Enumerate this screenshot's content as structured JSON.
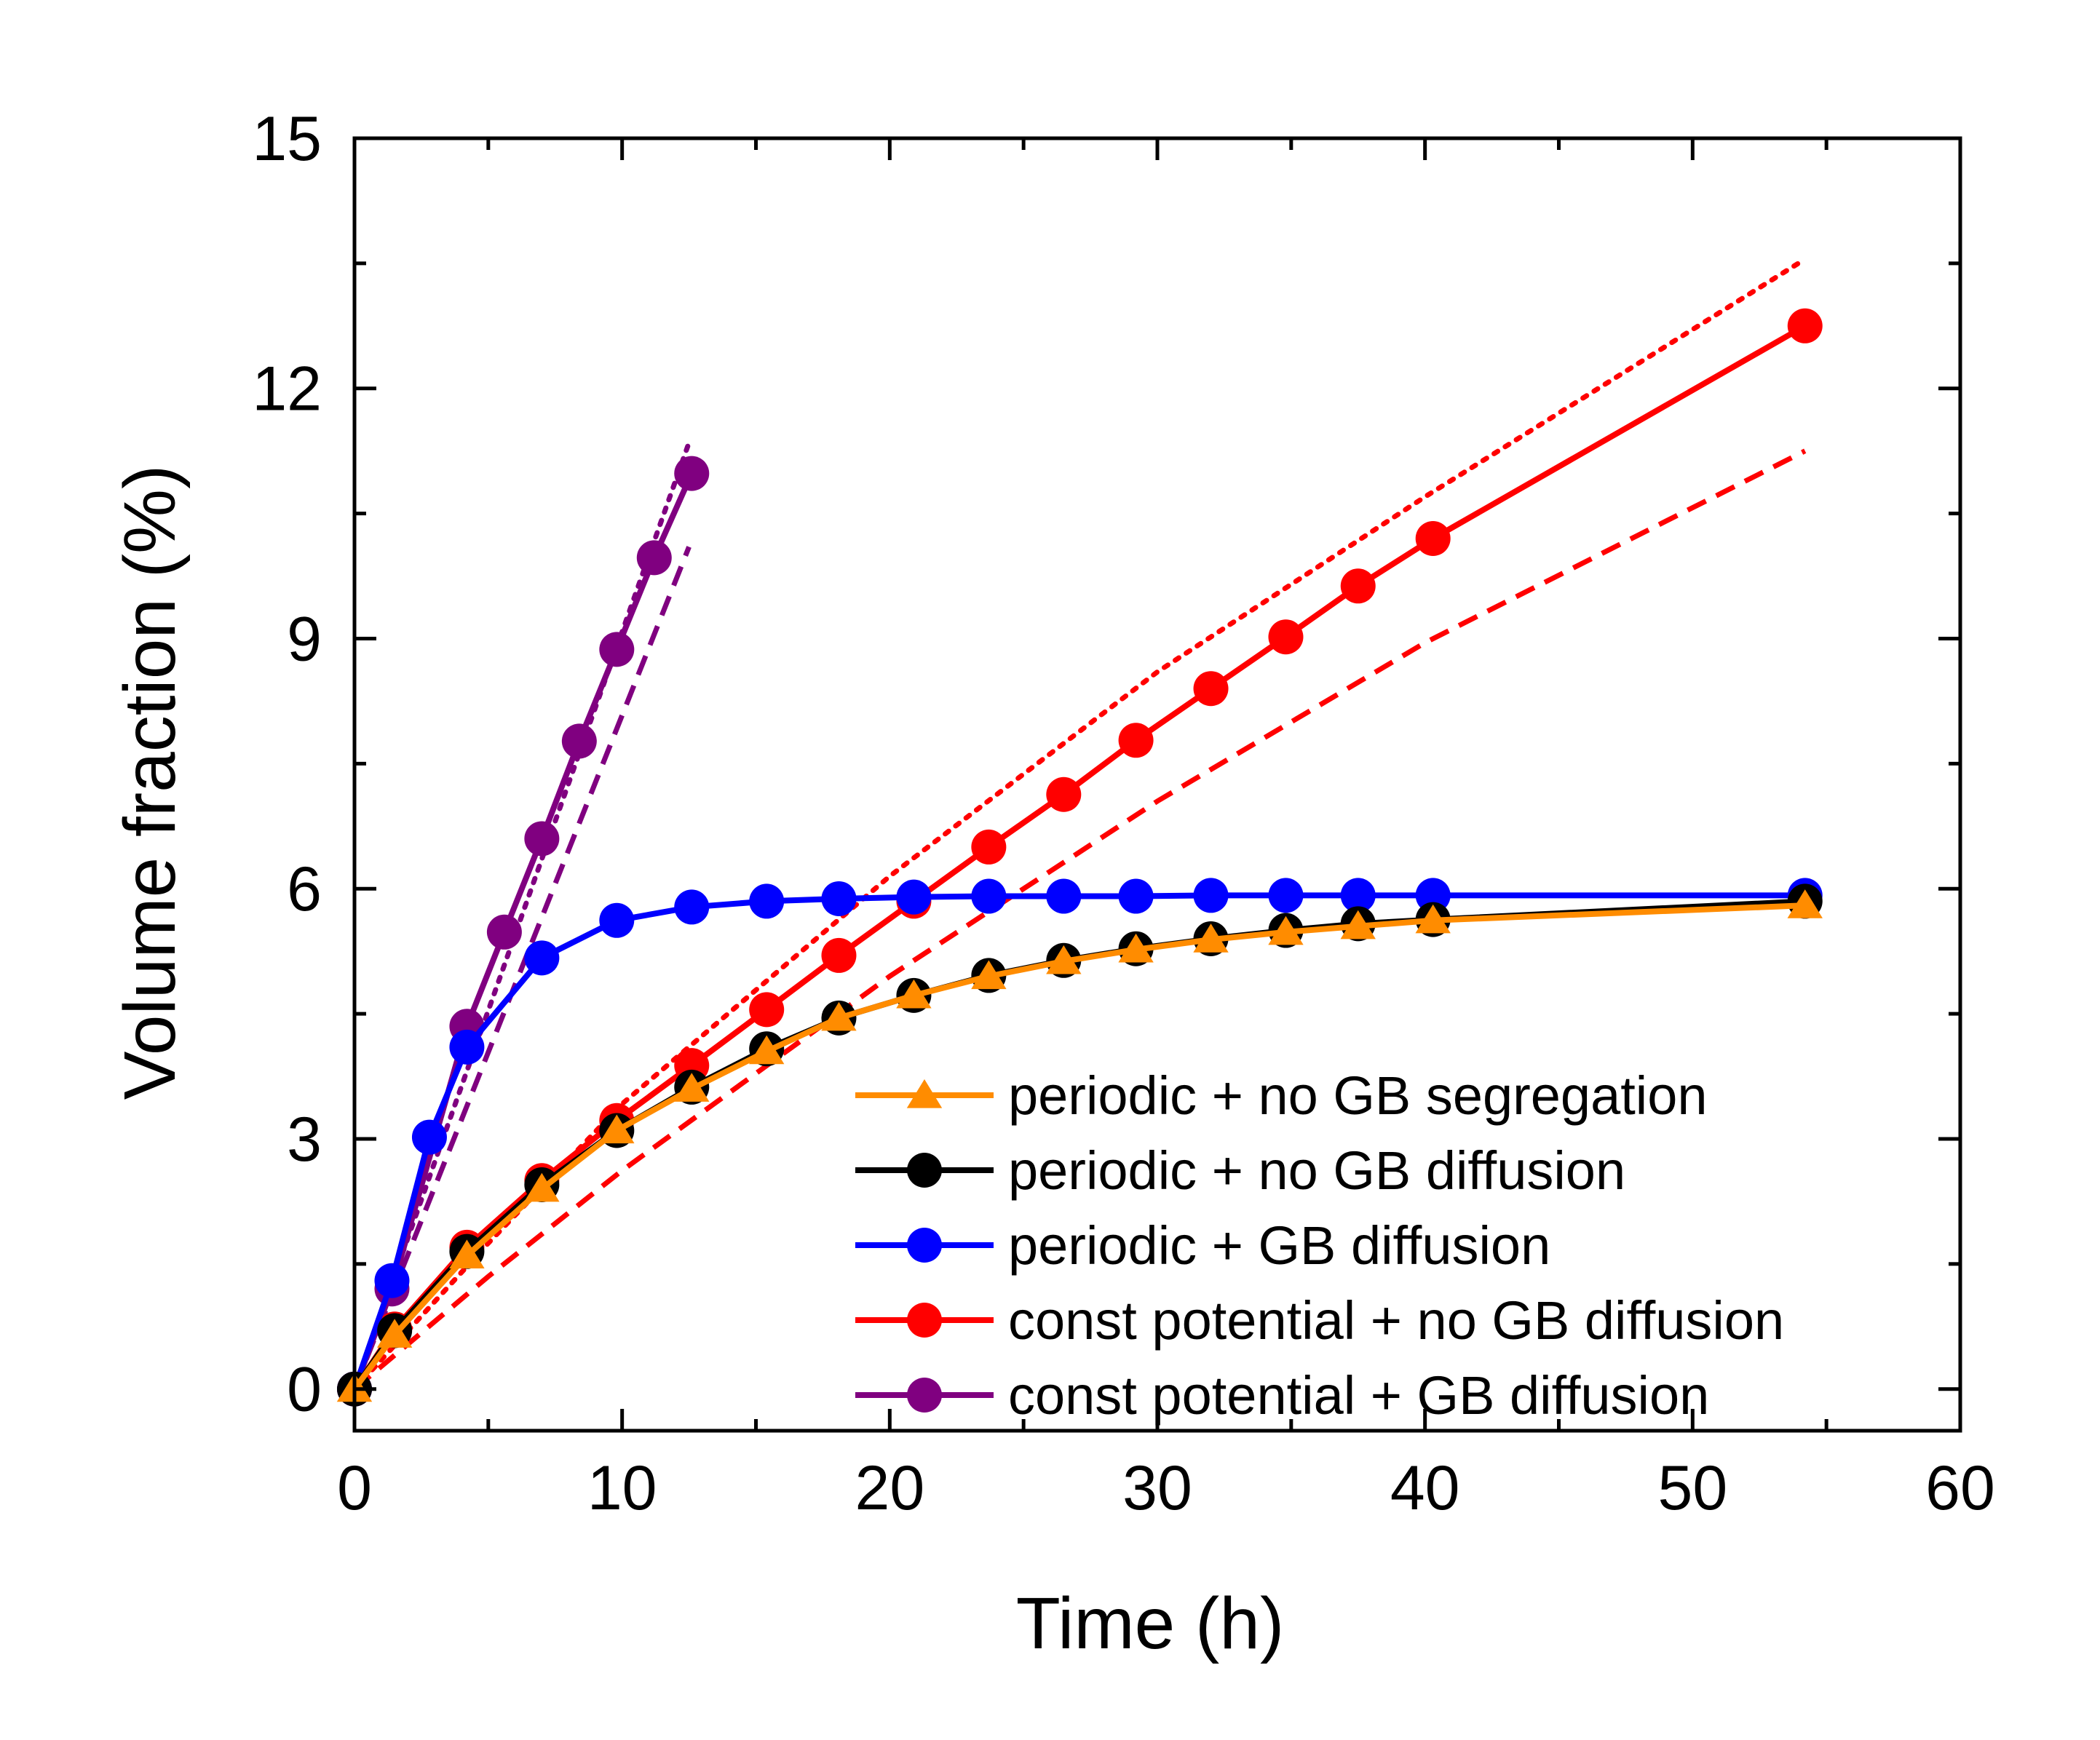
{
  "chart_data": {
    "type": "line",
    "xlabel": "Time (h)",
    "ylabel": "Volume fraction (%)",
    "xlim": [
      0,
      60
    ],
    "ylim": [
      -0.5,
      15
    ],
    "xticks": [
      0,
      10,
      20,
      30,
      40,
      50,
      60
    ],
    "xtick_labels": [
      "0",
      "10",
      "20",
      "30",
      "40",
      "50",
      "60"
    ],
    "yticks": [
      0,
      3,
      6,
      9,
      12,
      15
    ],
    "ytick_labels": [
      "0",
      "3",
      "6",
      "9",
      "12",
      "15"
    ],
    "legend_position": "bottom-right",
    "series": [
      {
        "name": "periodic + no GB segregation",
        "color": "#ff8c00",
        "marker": "triangle",
        "x": [
          0,
          1.5,
          4.2,
          7,
          9.8,
          12.6,
          15.4,
          18.1,
          20.9,
          23.7,
          26.5,
          29.2,
          32,
          34.8,
          37.5,
          40.3,
          54.2
        ],
        "y": [
          0,
          0.65,
          1.6,
          2.4,
          3.1,
          3.6,
          4.05,
          4.45,
          4.72,
          4.95,
          5.13,
          5.27,
          5.39,
          5.48,
          5.55,
          5.62,
          5.8
        ]
      },
      {
        "name": "periodic + no GB diffusion",
        "color": "#000000",
        "marker": "circle",
        "x": [
          0,
          1.5,
          4.2,
          7,
          9.8,
          12.6,
          15.4,
          18.1,
          20.9,
          23.7,
          26.5,
          29.2,
          32,
          34.8,
          37.5,
          40.3,
          54.2
        ],
        "y": [
          0,
          0.7,
          1.65,
          2.45,
          3.1,
          3.62,
          4.08,
          4.45,
          4.72,
          4.96,
          5.14,
          5.28,
          5.4,
          5.5,
          5.58,
          5.63,
          5.85
        ]
      },
      {
        "name": "periodic + GB diffusion",
        "color": "#0000ff",
        "marker": "circle",
        "x": [
          0,
          1.4,
          2.8,
          4.2,
          7,
          9.8,
          12.6,
          15.4,
          18.1,
          20.9,
          23.7,
          26.5,
          29.2,
          32,
          34.8,
          37.5,
          40.3,
          54.2
        ],
        "y": [
          0,
          1.3,
          3.02,
          4.1,
          5.17,
          5.62,
          5.78,
          5.85,
          5.88,
          5.9,
          5.91,
          5.91,
          5.91,
          5.92,
          5.92,
          5.92,
          5.92,
          5.92
        ]
      },
      {
        "name": "const potential + no GB diffusion",
        "color": "#ff0000",
        "marker": "circle",
        "x": [
          0,
          1.5,
          4.2,
          7,
          9.8,
          12.6,
          15.4,
          18.1,
          20.9,
          23.7,
          26.5,
          29.2,
          32,
          34.8,
          37.5,
          40.3,
          54.2
        ],
        "y": [
          0,
          0.72,
          1.7,
          2.5,
          3.22,
          3.88,
          4.55,
          5.2,
          5.85,
          6.5,
          7.13,
          7.78,
          8.4,
          9.02,
          9.63,
          10.2,
          12.75
        ]
      },
      {
        "name": "const potential + GB diffusion",
        "color": "#800080",
        "marker": "circle",
        "x": [
          0,
          1.4,
          4.2,
          5.6,
          7,
          8.4,
          9.8,
          11.2,
          12.6
        ],
        "y": [
          0,
          1.2,
          4.35,
          5.48,
          6.6,
          7.77,
          8.87,
          9.97,
          10.98
        ]
      }
    ],
    "reference_curves": [
      {
        "style": "dotted",
        "color": "#800080",
        "x": [
          0,
          12.5
        ],
        "y": [
          0,
          11.35
        ]
      },
      {
        "style": "dashed",
        "color": "#800080",
        "x": [
          0,
          12.5
        ],
        "y": [
          0,
          10.1
        ]
      },
      {
        "style": "dotted",
        "color": "#ff0000",
        "x": [
          0,
          5,
          10,
          20,
          30,
          40,
          54.2
        ],
        "y": [
          0,
          1.75,
          3.42,
          6.15,
          8.6,
          10.7,
          13.55
        ]
      },
      {
        "style": "dashed",
        "color": "#ff0000",
        "x": [
          0,
          5,
          10,
          20,
          30,
          40,
          54.2
        ],
        "y": [
          0,
          1.35,
          2.62,
          4.95,
          7.05,
          8.95,
          11.25
        ]
      }
    ]
  }
}
